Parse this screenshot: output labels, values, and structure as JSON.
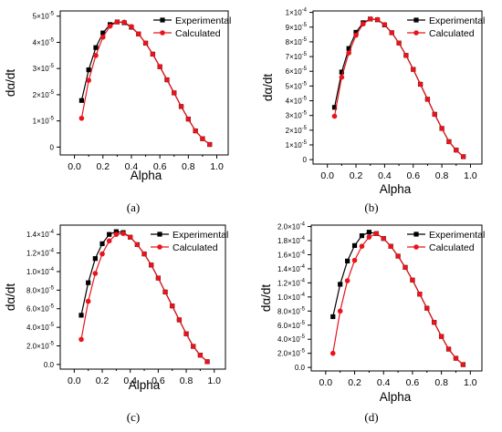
{
  "chart_data": [
    {
      "type": "line",
      "caption": "(a)",
      "xlabel": "Alpha",
      "ylabel": "dα/dt",
      "exponent": -5,
      "xlim": [
        -0.1,
        1.08
      ],
      "ylim": [
        -3e-06,
        5.2e-05
      ],
      "xticks": [
        0.0,
        0.2,
        0.4,
        0.6,
        0.8,
        1.0
      ],
      "xticklabels": [
        "0.0",
        "0.2",
        "0.4",
        "0.6",
        "0.8",
        "1.0"
      ],
      "yticks": [
        0,
        1e-05,
        2e-05,
        3e-05,
        4e-05,
        5e-05
      ],
      "yticklabels": [
        "0",
        "1×10",
        "2×10",
        "3×10",
        "4×10",
        "5×10"
      ],
      "legend": "top-right",
      "series": [
        {
          "name": "Experimental",
          "color": "#000000",
          "marker": "square",
          "x": [
            0.05,
            0.1,
            0.15,
            0.2,
            0.25,
            0.3,
            0.35,
            0.4,
            0.45,
            0.5,
            0.55,
            0.6,
            0.65,
            0.7,
            0.75,
            0.8,
            0.85,
            0.9,
            0.95
          ],
          "y": [
            1.78e-05,
            2.95e-05,
            3.8e-05,
            4.36e-05,
            4.68e-05,
            4.78e-05,
            4.75e-05,
            4.58e-05,
            4.32e-05,
            3.97e-05,
            3.55e-05,
            3.07e-05,
            2.57e-05,
            2.07e-05,
            1.55e-05,
            1.07e-05,
            6.2e-06,
            3.2e-06,
            1e-06
          ]
        },
        {
          "name": "Calculated",
          "color": "#e8141c",
          "marker": "circle",
          "x": [
            0.05,
            0.1,
            0.15,
            0.2,
            0.25,
            0.3,
            0.35,
            0.4,
            0.45,
            0.5,
            0.55,
            0.6,
            0.65,
            0.7,
            0.75,
            0.8,
            0.85,
            0.9,
            0.95
          ],
          "y": [
            1.1e-05,
            2.55e-05,
            3.5e-05,
            4.2e-05,
            4.62e-05,
            4.78e-05,
            4.77e-05,
            4.6e-05,
            4.32e-05,
            3.97e-05,
            3.55e-05,
            3.07e-05,
            2.57e-05,
            2.07e-05,
            1.55e-05,
            1.07e-05,
            6.2e-06,
            3.2e-06,
            1e-06
          ]
        }
      ]
    },
    {
      "type": "line",
      "caption": "(b)",
      "xlabel": "Alpha",
      "ylabel": "dα/dt",
      "exponent": -5,
      "xlim": [
        -0.1,
        1.08
      ],
      "ylim": [
        -3e-06,
        0.000101
      ],
      "xticks": [
        0.0,
        0.2,
        0.4,
        0.6,
        0.8,
        1.0
      ],
      "xticklabels": [
        "0.0",
        "0.2",
        "0.4",
        "0.6",
        "0.8",
        "1.0"
      ],
      "yticks": [
        0,
        1e-05,
        2e-05,
        3e-05,
        4e-05,
        5e-05,
        6e-05,
        7e-05,
        8e-05,
        9e-05,
        0.0001
      ],
      "yticklabels": [
        "0",
        "1×10",
        "2×10",
        "3×10",
        "4×10",
        "5×10",
        "6×10",
        "7×10",
        "8×10",
        "9×10",
        "1×10"
      ],
      "ytickexps": [
        null,
        "-5",
        "-5",
        "-5",
        "-5",
        "-5",
        "-5",
        "-5",
        "-5",
        "-5",
        "-4"
      ],
      "legend": "top-right",
      "series": [
        {
          "name": "Experimental",
          "color": "#000000",
          "marker": "square",
          "x": [
            0.05,
            0.1,
            0.15,
            0.2,
            0.25,
            0.3,
            0.35,
            0.4,
            0.45,
            0.5,
            0.55,
            0.6,
            0.65,
            0.7,
            0.75,
            0.8,
            0.85,
            0.9,
            0.95
          ],
          "y": [
            3.55e-05,
            5.95e-05,
            7.55e-05,
            8.65e-05,
            9.3e-05,
            9.55e-05,
            9.5e-05,
            9.15e-05,
            8.62e-05,
            7.92e-05,
            7.08e-05,
            6.13e-05,
            5.12e-05,
            4.1e-05,
            3.08e-05,
            2.12e-05,
            1.22e-05,
            6.5e-06,
            2e-06
          ]
        },
        {
          "name": "Calculated",
          "color": "#e8141c",
          "marker": "circle",
          "x": [
            0.05,
            0.1,
            0.15,
            0.2,
            0.25,
            0.3,
            0.35,
            0.4,
            0.45,
            0.5,
            0.55,
            0.6,
            0.65,
            0.7,
            0.75,
            0.8,
            0.85,
            0.9,
            0.95
          ],
          "y": [
            2.95e-05,
            5.6e-05,
            7.25e-05,
            8.45e-05,
            9.22e-05,
            9.55e-05,
            9.52e-05,
            9.17e-05,
            8.62e-05,
            7.92e-05,
            7.08e-05,
            6.13e-05,
            5.12e-05,
            4.1e-05,
            3.08e-05,
            2.12e-05,
            1.22e-05,
            6.5e-06,
            2e-06
          ]
        }
      ]
    },
    {
      "type": "line",
      "caption": "(c)",
      "xlabel": "Alpha",
      "ylabel": "dα/dt",
      "exponent": -4,
      "xlim": [
        -0.1,
        1.08
      ],
      "ylim": [
        -5e-06,
        0.00015
      ],
      "xticks": [
        0.0,
        0.2,
        0.4,
        0.6,
        0.8,
        1.0
      ],
      "xticklabels": [
        "0.0",
        "0.2",
        "0.4",
        "0.6",
        "0.8",
        "1.0"
      ],
      "yticks": [
        0,
        2e-05,
        4e-05,
        6e-05,
        8e-05,
        0.0001,
        0.00012,
        0.00014
      ],
      "yticklabels": [
        "0.0",
        "2.0×10",
        "4.0×10",
        "6.0×10",
        "8.0×10",
        "1.0×10",
        "1.2×10",
        "1.4×10"
      ],
      "ytickexps": [
        null,
        "-5",
        "-5",
        "-5",
        "-5",
        "-4",
        "-4",
        "-4"
      ],
      "legend": "top-right",
      "series": [
        {
          "name": "Experimental",
          "color": "#000000",
          "marker": "square",
          "x": [
            0.05,
            0.1,
            0.15,
            0.2,
            0.25,
            0.3,
            0.35,
            0.4,
            0.45,
            0.5,
            0.55,
            0.6,
            0.65,
            0.7,
            0.75,
            0.8,
            0.85,
            0.9,
            0.95
          ],
          "y": [
            5.3e-05,
            8.8e-05,
            0.000114,
            0.00013,
            0.00014,
            0.000143,
            0.000142,
            0.000137,
            0.000129,
            0.000119,
            0.000107,
            9.3e-05,
            7.8e-05,
            6.3e-05,
            4.8e-05,
            3.3e-05,
            1.95e-05,
            1e-05,
            3e-06
          ]
        },
        {
          "name": "Calculated",
          "color": "#e8141c",
          "marker": "circle",
          "x": [
            0.05,
            0.1,
            0.15,
            0.2,
            0.25,
            0.3,
            0.35,
            0.4,
            0.45,
            0.5,
            0.55,
            0.6,
            0.65,
            0.7,
            0.75,
            0.8,
            0.85,
            0.9,
            0.95
          ],
          "y": [
            2.7e-05,
            6.8e-05,
            9.8e-05,
            0.000119,
            0.000133,
            0.00014,
            0.000141,
            0.000137,
            0.000129,
            0.000119,
            0.000107,
            9.3e-05,
            7.8e-05,
            6.3e-05,
            4.8e-05,
            3.3e-05,
            1.95e-05,
            1e-05,
            3e-06
          ]
        }
      ]
    },
    {
      "type": "line",
      "caption": "(d)",
      "xlabel": "Alpha",
      "ylabel": "dα/dt",
      "exponent": -4,
      "xlim": [
        -0.1,
        1.08
      ],
      "ylim": [
        -5e-06,
        0.000202
      ],
      "xticks": [
        0.0,
        0.2,
        0.4,
        0.6,
        0.8,
        1.0
      ],
      "xticklabels": [
        "0.0",
        "0.2",
        "0.4",
        "0.6",
        "0.8",
        "1.0"
      ],
      "yticks": [
        0,
        2e-05,
        4e-05,
        6e-05,
        8e-05,
        0.0001,
        0.00012,
        0.00014,
        0.00016,
        0.00018,
        0.0002
      ],
      "yticklabels": [
        "0.0",
        "2.0×10",
        "4.0×10",
        "6.0×10",
        "8.0×10",
        "1.0×10",
        "1.2×10",
        "1.4×10",
        "1.6×10",
        "1.8×10",
        "2.0×10"
      ],
      "ytickexps": [
        null,
        "-5",
        "-5",
        "-5",
        "-5",
        "-4",
        "-4",
        "-4",
        "-4",
        "-4",
        "-4"
      ],
      "legend": "top-right",
      "series": [
        {
          "name": "Experimental",
          "color": "#000000",
          "marker": "square",
          "x": [
            0.05,
            0.1,
            0.15,
            0.2,
            0.25,
            0.3,
            0.35,
            0.4,
            0.45,
            0.5,
            0.55,
            0.6,
            0.65,
            0.7,
            0.75,
            0.8,
            0.85,
            0.9,
            0.95
          ],
          "y": [
            7.2e-05,
            0.000118,
            0.000151,
            0.000173,
            0.000187,
            0.000192,
            0.00019,
            0.000183,
            0.000172,
            0.000158,
            0.000142,
            0.000124,
            0.000104,
            8.4e-05,
            6.4e-05,
            4.4e-05,
            2.6e-05,
            1.3e-05,
            4e-06
          ]
        },
        {
          "name": "Calculated",
          "color": "#e8141c",
          "marker": "circle",
          "x": [
            0.05,
            0.1,
            0.15,
            0.2,
            0.25,
            0.3,
            0.35,
            0.4,
            0.45,
            0.5,
            0.55,
            0.6,
            0.65,
            0.7,
            0.75,
            0.8,
            0.85,
            0.9,
            0.95
          ],
          "y": [
            2e-05,
            8e-05,
            0.000123,
            0.000152,
            0.000172,
            0.000185,
            0.00019,
            0.000183,
            0.000172,
            0.000158,
            0.000142,
            0.000124,
            0.000104,
            8.4e-05,
            6.4e-05,
            4.4e-05,
            2.6e-05,
            1.3e-05,
            4e-06
          ]
        }
      ]
    }
  ]
}
